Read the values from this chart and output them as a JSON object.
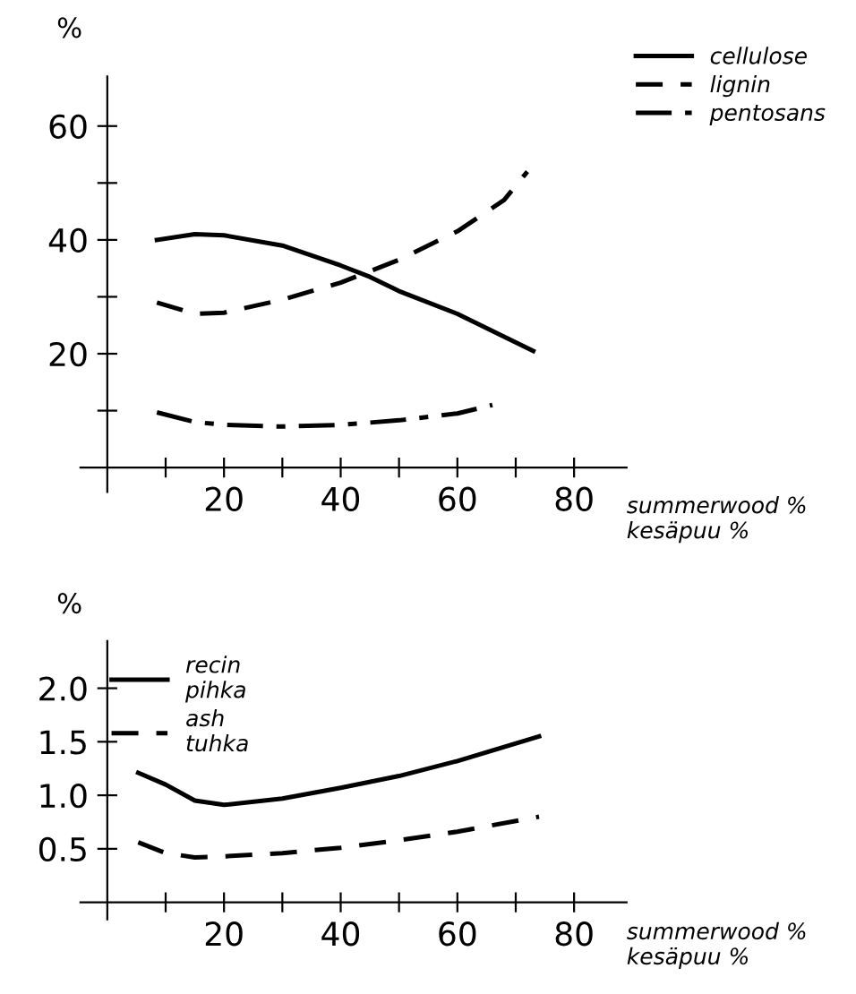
{
  "chart_data": [
    {
      "type": "line",
      "xlabel": "summerwood %\nkesäpuu %",
      "ylabel": "%",
      "legend": "top right",
      "grid": false,
      "xlim": [
        -4.6,
        89
      ],
      "ylim": [
        -4.3,
        68.7
      ],
      "xticks": [
        {
          "value": 10,
          "label": null
        },
        20,
        {
          "value": 30,
          "label": null
        },
        40,
        {
          "value": 50,
          "label": null
        },
        60,
        {
          "value": 70,
          "label": null
        },
        80
      ],
      "yticks": [
        {
          "value": 10,
          "label": null
        },
        20,
        {
          "value": 30,
          "label": null
        },
        40,
        {
          "value": 50,
          "label": null
        },
        60
      ],
      "series": [
        {
          "name": "cellulose",
          "color": "#000000",
          "line_style": "solid",
          "x": [
            8.5,
            15,
            20,
            30,
            40,
            45,
            50,
            60,
            73
          ],
          "values": [
            40,
            41,
            40.8,
            39,
            35.5,
            33.5,
            31,
            27,
            20.5
          ]
        },
        {
          "name": "lignin",
          "color": "#000000",
          "line_style": "dashed",
          "x": [
            8.5,
            15,
            20,
            30,
            40,
            45,
            50,
            60,
            68,
            72
          ],
          "values": [
            29,
            27,
            27.2,
            29.5,
            32.5,
            34.5,
            36.5,
            41.5,
            47,
            52
          ]
        },
        {
          "name": "pentosans",
          "color": "#000000",
          "line_style": "dashdot",
          "x": [
            8.5,
            15,
            20,
            30,
            40,
            50,
            60,
            66
          ],
          "values": [
            9.7,
            8,
            7.5,
            7.2,
            7.5,
            8.3,
            9.5,
            11
          ]
        }
      ]
    },
    {
      "type": "line",
      "xlabel": "summerwood %\nkesäpuu %",
      "ylabel": "%",
      "legend": "top left",
      "grid": false,
      "xlim": [
        -4.6,
        89
      ],
      "ylim": [
        -0.16,
        2.44
      ],
      "xticks": [
        {
          "value": 10,
          "label": null
        },
        20,
        {
          "value": 30,
          "label": null
        },
        40,
        {
          "value": 50,
          "label": null
        },
        60,
        {
          "value": 70,
          "label": null
        },
        80
      ],
      "yticks": [
        {
          "value": 0.5,
          "label": "0.5"
        },
        {
          "value": 1.0,
          "label": "1.0"
        },
        1.5,
        {
          "value": 2.0,
          "label": "2.0"
        }
      ],
      "series": [
        {
          "name": "recin\npihka",
          "color": "#000000",
          "line_style": "solid",
          "x": [
            5.3,
            10,
            15,
            20,
            30,
            40,
            50,
            60,
            74
          ],
          "values": [
            1.21,
            1.1,
            0.95,
            0.91,
            0.97,
            1.07,
            1.18,
            1.32,
            1.55
          ]
        },
        {
          "name": "ash\ntuhka",
          "color": "#000000",
          "line_style": "dashed",
          "x": [
            5.3,
            10,
            15,
            20,
            30,
            40,
            50,
            60,
            74
          ],
          "values": [
            0.56,
            0.46,
            0.42,
            0.43,
            0.46,
            0.51,
            0.58,
            0.66,
            0.8
          ]
        }
      ]
    }
  ]
}
